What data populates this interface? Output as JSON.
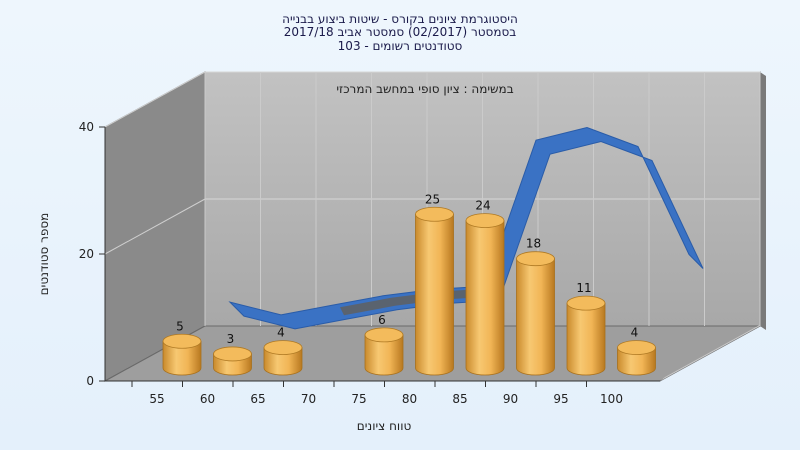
{
  "chart_data": {
    "type": "bar",
    "title_lines": [
      "היסטוגרמת ציונים בקורס - שיטות ביצוע בבנייה",
      "בסמסטר (02/2017) סמסטר אביב 2017/18",
      "103 - סטודנטים רשומים"
    ],
    "annotation": "במשימה : ציון סופי במחשב המרכזי",
    "xlabel": "טווח ציונים",
    "ylabel": "מספר סטודנטים",
    "categories": [
      "55",
      "60",
      "65",
      "70",
      "75",
      "80",
      "85",
      "90",
      "95",
      "100"
    ],
    "y_ticks": [
      "0",
      "20",
      "40"
    ],
    "ylim": [
      0,
      40
    ],
    "series": [
      {
        "values": [
          5,
          3,
          4,
          0,
          6,
          25,
          24,
          18,
          11,
          4
        ],
        "data_labels": [
          "5",
          "3",
          "4",
          "",
          "6",
          "25",
          "24",
          "18",
          "11",
          "4"
        ]
      }
    ],
    "curve_approx_values": [
      2.5,
      0.5,
      2,
      3.5,
      4.5,
      5,
      28,
      30,
      27,
      10
    ],
    "colors": {
      "bar": "#f0b050",
      "curve_front": "#3a72c4",
      "curve_back": "#606060",
      "back_wall": "#b4b4b4",
      "side_wall": "#8a8a8a",
      "floor": "#a0a0a0"
    },
    "legend": "none",
    "grid": true
  }
}
